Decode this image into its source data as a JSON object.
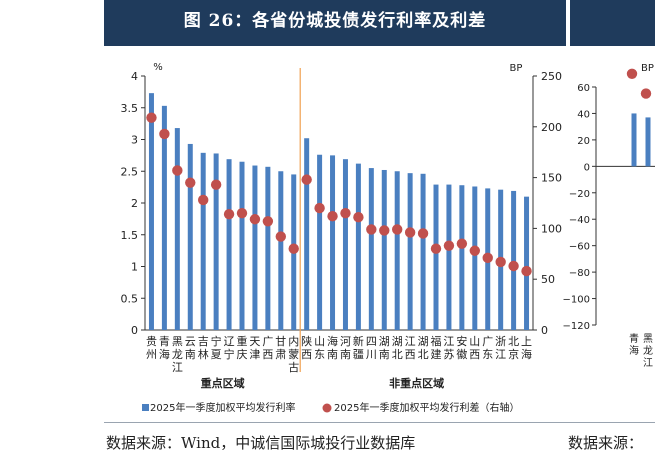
{
  "header": {
    "title": "图 26：各省份城投债发行利率及利差"
  },
  "source": {
    "left": "数据来源：Wind，中诚信国际城投行业数据库",
    "right": "数据来源："
  },
  "colors": {
    "bar": "#4a7fc0",
    "dot": "#c0504d",
    "header": "#1f3b5c",
    "divider": "#f0a050"
  },
  "chart_data": [
    {
      "type": "bar",
      "left_unit": "%",
      "right_unit": "BP",
      "ylim": [
        0,
        4
      ],
      "y2lim": [
        0,
        250
      ],
      "yticks": [
        "0",
        "0.5",
        "1",
        "1.5",
        "2",
        "2.5",
        "3",
        "3.5",
        "4"
      ],
      "y2ticks": [
        "0",
        "50",
        "100",
        "150",
        "200",
        "250"
      ],
      "categories": [
        "贵州",
        "青海",
        "黑龙江",
        "云南",
        "吉林",
        "宁夏",
        "辽宁",
        "重庆",
        "天津",
        "广西",
        "甘肃",
        "内蒙古",
        "陕西",
        "山东",
        "海南",
        "河南",
        "新疆",
        "四川",
        "湖南",
        "湖北",
        "江西",
        "湖北",
        "福建",
        "江苏",
        "安徽",
        "山西",
        "广东",
        "浙江",
        "北京",
        "上海"
      ],
      "group_labels": [
        "重点区域",
        "非重点区域"
      ],
      "series": [
        {
          "name": "2025年一季度加权平均发行利率",
          "axis": "left",
          "marker": "bar",
          "values": [
            3.73,
            3.53,
            3.18,
            2.93,
            2.79,
            2.78,
            2.69,
            2.65,
            2.59,
            2.57,
            2.5,
            2.45,
            3.02,
            2.76,
            2.75,
            2.69,
            2.62,
            2.55,
            2.52,
            2.5,
            2.47,
            2.46,
            2.29,
            2.29,
            2.28,
            2.26,
            2.23,
            2.21,
            2.19,
            2.1
          ]
        },
        {
          "name": "2025年一季度加权平均发行利差（右轴）",
          "axis": "right",
          "marker": "dot",
          "values": [
            209,
            193,
            157,
            145,
            128,
            143,
            114,
            115,
            109,
            107,
            92,
            80,
            148,
            120,
            112,
            115,
            111,
            99,
            98,
            99,
            96,
            95,
            80,
            83,
            85,
            78,
            71,
            67,
            63,
            58
          ]
        }
      ]
    },
    {
      "type": "bar",
      "partial": true,
      "left_unit": "BP",
      "ylim": [
        -120,
        60
      ],
      "yticks": [
        "60",
        "40",
        "20",
        "0",
        "−20",
        "−40",
        "−60",
        "−80",
        "−100",
        "−120"
      ],
      "categories": [
        "青海",
        "黑龙江"
      ],
      "series": [
        {
          "axis": "left",
          "marker": "bar",
          "values": [
            40,
            37
          ]
        },
        {
          "axis": "left",
          "marker": "dot",
          "values": [
            70,
            55
          ]
        }
      ]
    }
  ]
}
